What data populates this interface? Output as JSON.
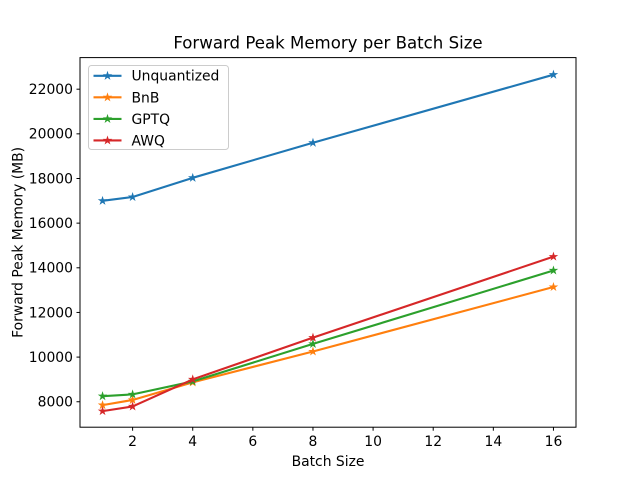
{
  "figure": {
    "background": "#ffffff",
    "spine_color": "#000000",
    "text_color": "#000000"
  },
  "chart_data": {
    "type": "line",
    "title": "Forward Peak Memory per Batch Size",
    "xlabel": "Batch Size",
    "ylabel": "Forward Peak Memory (MB)",
    "x": [
      1,
      2,
      4,
      8,
      16
    ],
    "series": [
      {
        "name": "Unquantized",
        "color": "#1f77b4",
        "marker": "star",
        "values": [
          17000,
          17170,
          18030,
          19600,
          22650
        ]
      },
      {
        "name": "BnB",
        "color": "#ff7f0e",
        "marker": "star",
        "values": [
          7850,
          8080,
          8870,
          10250,
          13140
        ]
      },
      {
        "name": "GPTQ",
        "color": "#2ca02c",
        "marker": "star",
        "values": [
          8250,
          8330,
          8910,
          10590,
          13880
        ]
      },
      {
        "name": "AWQ",
        "color": "#d62728",
        "marker": "star",
        "values": [
          7580,
          7790,
          9000,
          10870,
          14500
        ]
      }
    ],
    "xlim": [
      0.25,
      16.75
    ],
    "ylim": [
      6860,
      23415
    ],
    "xticks": [
      2,
      4,
      6,
      8,
      10,
      12,
      14,
      16
    ],
    "yticks": [
      8000,
      10000,
      12000,
      14000,
      16000,
      18000,
      20000,
      22000
    ],
    "grid": false,
    "legend": {
      "position": "upper-left",
      "frame_color": "#cccccc",
      "frame_fill": "rgba(255,255,255,0.8)"
    }
  }
}
